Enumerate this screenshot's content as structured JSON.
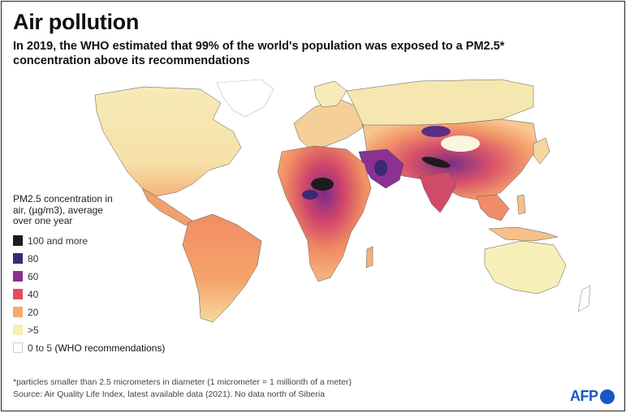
{
  "title": "Air pollution",
  "subtitle": "In 2019, the WHO estimated that 99% of the world's population was exposed to a PM2.5* concentration above its recommendations",
  "legend": {
    "title": "PM2.5 concentration in air, (µg/m3), average over one year",
    "items": [
      {
        "label": "100 and more",
        "color": "#1f1a1f"
      },
      {
        "label": "80",
        "color": "#3b2a73"
      },
      {
        "label": "60",
        "color": "#8a2f8f"
      },
      {
        "label": "40",
        "color": "#e24d61"
      },
      {
        "label": "20",
        "color": "#f6a96b"
      },
      {
        "label": ">5",
        "color": "#f5efb4"
      },
      {
        "label": "0 to 5 ",
        "label_strong": "(WHO recommendations)",
        "color": "#ffffff"
      }
    ]
  },
  "footnote": {
    "line1": "*particles smaller than 2.5 micrometers in diameter (1 micrometer = 1 millionth of a meter)",
    "line2": "Source: Air Quality Life Index, latest available data (2021). No data north of Siberia"
  },
  "logo": "AFP",
  "colors": {
    "ocean": "#ffffff",
    "border": "#3a3a3a",
    "brand": "#1a56c4"
  }
}
